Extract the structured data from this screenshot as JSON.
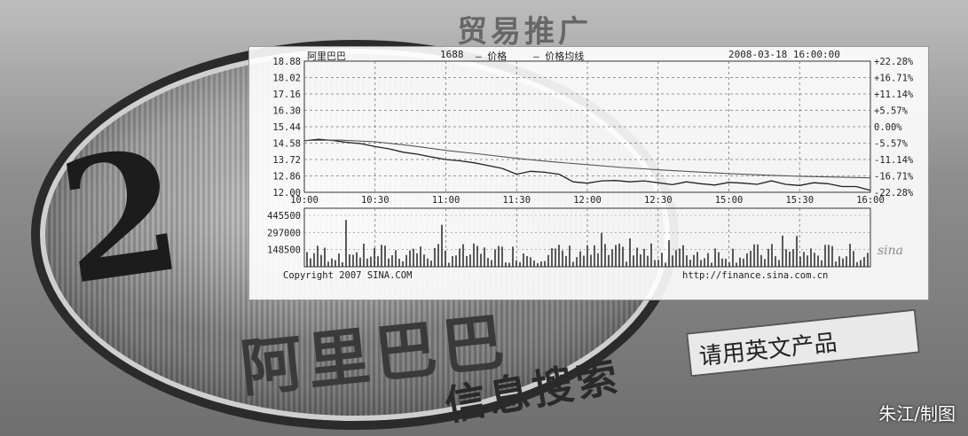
{
  "background_text": {
    "top_banner": "贸易推广",
    "name_large": "阿里巴巴",
    "search_word": "信息搜索",
    "search_box": "请用英文产品"
  },
  "credit": "朱江/制图",
  "stock_panel": {
    "stock_name": "阿里巴巴",
    "code": "1688",
    "legend_price": "价格",
    "legend_avg": "价格均线",
    "datetime": "2008-03-18 16:00:00",
    "copyright": "Copyright 2007 SINA.COM",
    "url": "http://finance.sina.com.cn",
    "logo": "sina"
  },
  "chart_data": {
    "type": "line",
    "x_ticks": [
      "10:00",
      "10:30",
      "11:00",
      "11:30",
      "12:00",
      "12:30",
      "15:00",
      "15:30",
      "16:00"
    ],
    "y_ticks_left": [
      "18.88",
      "18.02",
      "17.16",
      "16.30",
      "15.44",
      "14.58",
      "13.72",
      "12.86",
      "12.00"
    ],
    "y_ticks_right": [
      "+22.28%",
      "+16.71%",
      "+11.14%",
      "+5.57%",
      "0.00%",
      "-5.57%",
      "-11.14%",
      "-16.71%",
      "-22.28%"
    ],
    "ylim": [
      12.0,
      18.88
    ],
    "series": [
      {
        "name": "价格",
        "x": [
          0,
          0.2,
          0.4,
          0.6,
          0.8,
          1.0,
          1.2,
          1.4,
          1.6,
          1.8,
          2.0,
          2.2,
          2.4,
          2.6,
          2.8,
          3.0,
          3.2,
          3.4,
          3.6,
          3.8,
          4.0,
          4.2,
          4.4,
          4.6,
          4.8,
          5.0,
          5.2,
          5.4,
          5.6,
          5.8,
          6.0,
          6.2,
          6.4,
          6.6,
          6.8,
          7.0,
          7.2,
          7.4,
          7.6,
          7.8,
          8.0
        ],
        "values": [
          14.7,
          14.78,
          14.72,
          14.62,
          14.55,
          14.4,
          14.28,
          14.1,
          14.0,
          13.85,
          13.72,
          13.65,
          13.55,
          13.4,
          13.25,
          12.95,
          13.1,
          13.05,
          12.95,
          12.55,
          12.48,
          12.6,
          12.62,
          12.55,
          12.6,
          12.5,
          12.4,
          12.55,
          12.45,
          12.38,
          12.52,
          12.48,
          12.42,
          12.6,
          12.42,
          12.36,
          12.5,
          12.45,
          12.3,
          12.3,
          12.1
        ]
      },
      {
        "name": "价格均线",
        "x": [
          0,
          0.5,
          1.0,
          1.5,
          2.0,
          2.5,
          3.0,
          3.5,
          4.0,
          4.5,
          5.0,
          5.5,
          6.0,
          6.5,
          7.0,
          7.5,
          8.0
        ],
        "values": [
          14.72,
          14.74,
          14.65,
          14.45,
          14.2,
          14.0,
          13.78,
          13.6,
          13.45,
          13.3,
          13.18,
          13.08,
          12.98,
          12.9,
          12.84,
          12.8,
          12.76
        ]
      }
    ],
    "volume": {
      "y_ticks": [
        "445500",
        "297000",
        "148500"
      ],
      "ylim": [
        0,
        594000
      ]
    }
  }
}
